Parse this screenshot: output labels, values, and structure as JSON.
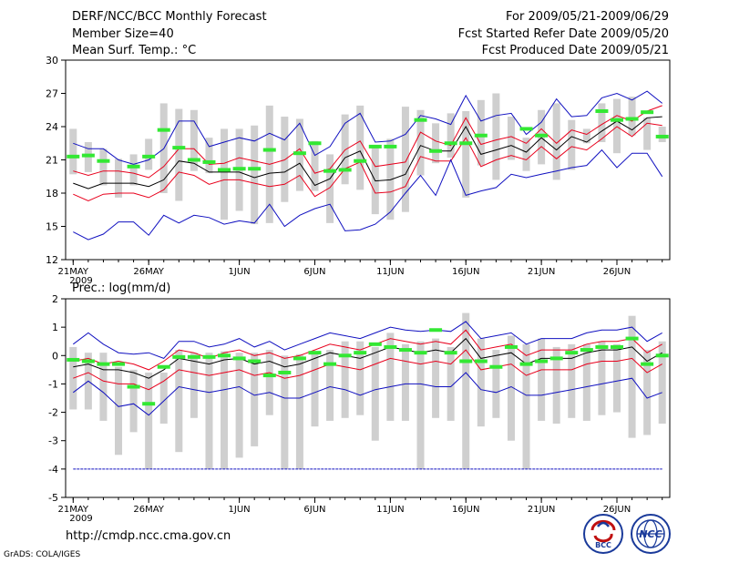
{
  "header": {
    "title": "DERF/NCC/BCC Monthly Forecast",
    "member_size": "Member Size=40",
    "variable": "Mean Surf. Temp.: °C",
    "period": "For 2009/05/21-2009/06/29",
    "started": "Fcst Started Refer Date 2009/05/20",
    "produced": "Fcst Produced Date 2009/05/21"
  },
  "footer": {
    "url": "http://cmdp.ncc.cma.gov.cn",
    "grads": "GrADS: COLA/IGES",
    "logo_bcc": "BCC",
    "logo_ncc": "NCC"
  },
  "colors": {
    "box": "#cfcfcf",
    "ensemble_mean": "#000000",
    "spread_band": "#e8001c",
    "extreme_envelope": "#1010c0",
    "observed": "#33e833",
    "threshold": "#1010c0"
  },
  "chart_data": [
    {
      "type": "box-line",
      "title": "Mean Surf. Temp.: °C",
      "xlabel": "",
      "ylabel": "",
      "ylim": [
        12,
        30
      ],
      "yticks": [
        12,
        15,
        18,
        21,
        24,
        27,
        30
      ],
      "xtick_labels": [
        "21MAY",
        "26MAY",
        "1JUN",
        "6JUN",
        "11JUN",
        "16JUN",
        "21JUN",
        "26JUN"
      ],
      "xtick_days": [
        0,
        5,
        11,
        16,
        21,
        26,
        31,
        36
      ],
      "year_label": "2009",
      "days": 40,
      "series": [
        {
          "name": "max",
          "values": [
            22.5,
            22,
            22,
            21,
            20.6,
            21,
            22,
            24.5,
            24.5,
            22.2,
            22.6,
            23,
            22.7,
            23.4,
            22.8,
            24.3,
            21.4,
            22.2,
            24.3,
            25.2,
            22.6,
            22.7,
            23.3,
            25,
            24.7,
            24.2,
            26.8,
            24.5,
            25,
            25.2,
            23.3,
            24.4,
            26.5,
            24.9,
            25,
            26.6,
            27,
            26.4,
            27.2,
            26.1
          ]
        },
        {
          "name": "upper",
          "values": [
            20,
            19.6,
            20,
            20,
            19.8,
            19.4,
            20.4,
            22,
            22,
            20.6,
            20.7,
            21.2,
            20.9,
            20.6,
            21,
            22,
            19.8,
            20.2,
            21.9,
            22.7,
            20.4,
            20.6,
            20.8,
            23.5,
            22.7,
            22.3,
            24.8,
            22.4,
            22.8,
            23.1,
            22.5,
            23.8,
            22.5,
            23.7,
            23.3,
            24.2,
            25,
            24.5,
            25.4,
            25.9
          ]
        },
        {
          "name": "mean",
          "values": [
            18.9,
            18.4,
            18.9,
            18.9,
            18.9,
            18.6,
            19.2,
            20.9,
            20.7,
            19.9,
            19.9,
            19.9,
            19.4,
            19.8,
            19.9,
            20.7,
            18.7,
            19.3,
            21.2,
            21.8,
            19.1,
            19.2,
            19.7,
            22.3,
            21.8,
            21.8,
            24,
            21.5,
            21.9,
            22.3,
            21.7,
            23,
            21.9,
            23.1,
            22.6,
            23.6,
            24.5,
            23.7,
            24.8,
            24.9
          ]
        },
        {
          "name": "lower",
          "values": [
            17.9,
            17.3,
            17.9,
            18,
            18,
            17.6,
            18.3,
            19.9,
            19.6,
            18.8,
            19.2,
            19.2,
            18.9,
            18.6,
            18.8,
            19.6,
            17.7,
            18.5,
            20.2,
            20.8,
            18,
            18.1,
            18.6,
            21.3,
            20.9,
            20.9,
            23,
            20.4,
            21,
            21.4,
            21,
            22.2,
            21.1,
            22.2,
            21.9,
            22.9,
            24,
            23.1,
            24.3,
            24.1
          ]
        },
        {
          "name": "min",
          "values": [
            14.5,
            13.8,
            14.3,
            15.4,
            15.4,
            14.2,
            16,
            15.3,
            16,
            15.8,
            15.2,
            15.5,
            15.3,
            17,
            15,
            16,
            16.6,
            17,
            14.6,
            14.7,
            15.2,
            16.3,
            18,
            19.6,
            17.8,
            21,
            17.8,
            18.2,
            18.5,
            19.7,
            19.4,
            19.7,
            20,
            20.3,
            20.5,
            21.9,
            20.3,
            21.6,
            21.6,
            19.5
          ]
        },
        {
          "name": "box_high",
          "values": [
            23.8,
            22.6,
            22,
            21.1,
            21.5,
            22.9,
            26.1,
            25.6,
            25.5,
            23,
            23.8,
            23.8,
            24.1,
            25.9,
            24.9,
            24.7,
            22.7,
            21.5,
            25.1,
            25.9,
            22.3,
            22.9,
            25.8,
            25.5,
            24.3,
            25.2,
            25.4,
            26.4,
            27,
            24.9,
            23,
            25.5,
            26.1,
            24.6,
            23.8,
            26.1,
            26.5,
            26.7,
            24.8,
            24
          ]
        },
        {
          "name": "box_low",
          "values": [
            19.7,
            19.9,
            18.7,
            17.6,
            18.7,
            20.1,
            18,
            17.3,
            20,
            19.8,
            15.6,
            16.4,
            15.2,
            15.3,
            17.2,
            18.2,
            18.2,
            15.3,
            18.8,
            18.3,
            16.1,
            15.6,
            16.3,
            19.6,
            20.7,
            21.2,
            17.6,
            20.5,
            19.2,
            21,
            20,
            20.6,
            19.2,
            20.1,
            22.5,
            22.6,
            21.6,
            23.2,
            21.9,
            22.6
          ]
        },
        {
          "name": "observed",
          "values": [
            21.3,
            21.4,
            20.9,
            null,
            20.4,
            21.3,
            23.7,
            22.1,
            21,
            20.8,
            20.1,
            20.2,
            20.2,
            21.9,
            null,
            21.6,
            22.5,
            20,
            20.1,
            20.9,
            22.2,
            22.2,
            null,
            24.6,
            21.8,
            22.5,
            22.5,
            23.2,
            null,
            null,
            23.8,
            23.2,
            null,
            null,
            null,
            25.4,
            24.6,
            24.7,
            25.3,
            23.1
          ]
        }
      ]
    },
    {
      "type": "box-line",
      "title": "Prec.: log(mm/d)",
      "xlabel": "",
      "ylabel": "",
      "ylim": [
        -5,
        2
      ],
      "yticks": [
        -5,
        -4,
        -3,
        -2,
        -1,
        0,
        1,
        2
      ],
      "xtick_labels": [
        "21MAY",
        "26MAY",
        "1JUN",
        "6JUN",
        "11JUN",
        "16JUN",
        "21JUN",
        "26JUN"
      ],
      "xtick_days": [
        0,
        5,
        11,
        16,
        21,
        26,
        31,
        36
      ],
      "year_label": "2009",
      "days": 40,
      "threshold": -4,
      "series": [
        {
          "name": "max",
          "values": [
            0.4,
            0.8,
            0.4,
            0.1,
            0.05,
            0.1,
            -0.1,
            0.5,
            0.5,
            0.3,
            0.4,
            0.6,
            0.3,
            0.5,
            0.2,
            0.4,
            0.6,
            0.8,
            0.7,
            0.6,
            0.8,
            1,
            0.9,
            0.85,
            0.9,
            0.85,
            1.2,
            0.6,
            0.7,
            0.8,
            0.4,
            0.6,
            0.6,
            0.6,
            0.8,
            0.9,
            0.9,
            1,
            0.5,
            0.8
          ]
        },
        {
          "name": "upper",
          "values": [
            -0.2,
            -0.1,
            -0.3,
            -0.2,
            -0.3,
            -0.5,
            -0.2,
            0.2,
            0.1,
            -0.1,
            0.1,
            0.2,
            0,
            0.1,
            -0.1,
            0,
            0.2,
            0.4,
            0.3,
            0.2,
            0.4,
            0.6,
            0.5,
            0.4,
            0.5,
            0.4,
            0.9,
            0.2,
            0.3,
            0.4,
            0,
            0.2,
            0.2,
            0.2,
            0.4,
            0.5,
            0.5,
            0.6,
            0.1,
            0.4
          ]
        },
        {
          "name": "mean",
          "values": [
            -0.4,
            -0.3,
            -0.5,
            -0.5,
            -0.6,
            -0.8,
            -0.5,
            -0.1,
            -0.2,
            -0.3,
            -0.15,
            -0.1,
            -0.3,
            -0.2,
            -0.4,
            -0.3,
            -0.1,
            0.1,
            0,
            -0.1,
            0.1,
            0.3,
            0.2,
            0.1,
            0.2,
            0.1,
            0.6,
            -0.1,
            0,
            0.1,
            -0.3,
            -0.1,
            -0.1,
            -0.1,
            0.1,
            0.2,
            0.2,
            0.3,
            -0.2,
            0.1
          ]
        },
        {
          "name": "lower",
          "values": [
            -0.8,
            -0.6,
            -0.9,
            -1,
            -1,
            -1.2,
            -0.9,
            -0.5,
            -0.6,
            -0.7,
            -0.6,
            -0.5,
            -0.7,
            -0.6,
            -0.8,
            -0.7,
            -0.5,
            -0.3,
            -0.4,
            -0.5,
            -0.3,
            -0.1,
            -0.2,
            -0.3,
            -0.2,
            -0.3,
            0.2,
            -0.5,
            -0.4,
            -0.3,
            -0.7,
            -0.5,
            -0.5,
            -0.5,
            -0.3,
            -0.2,
            -0.2,
            -0.1,
            -0.6,
            -0.3
          ]
        },
        {
          "name": "min",
          "values": [
            -1.3,
            -0.9,
            -1.3,
            -1.8,
            -1.7,
            -2.1,
            -1.6,
            -1.1,
            -1.2,
            -1.3,
            -1.2,
            -1.1,
            -1.4,
            -1.3,
            -1.5,
            -1.5,
            -1.3,
            -1.1,
            -1.2,
            -1.4,
            -1.2,
            -1.1,
            -1,
            -1,
            -1.1,
            -1.1,
            -0.6,
            -1.2,
            -1.3,
            -1.1,
            -1.4,
            -1.4,
            -1.3,
            -1.2,
            -1.1,
            -1,
            -0.9,
            -0.8,
            -1.5,
            -1.3
          ]
        },
        {
          "name": "box_high",
          "values": [
            0.3,
            0.1,
            0.1,
            -0.4,
            -0.5,
            -0.6,
            -0.6,
            0.2,
            0.1,
            0.1,
            0.15,
            0.1,
            0.1,
            0.2,
            0,
            0.05,
            0.1,
            0.2,
            0.5,
            0.5,
            0.3,
            0.8,
            0.4,
            0.5,
            0.6,
            0.3,
            1.5,
            0.6,
            0.2,
            0.7,
            0.4,
            0.6,
            0.3,
            0.4,
            0.4,
            0.5,
            0.4,
            1.4,
            0.2,
            0.5
          ]
        },
        {
          "name": "box_low",
          "values": [
            -1.9,
            -1.9,
            -2.3,
            -3.5,
            -2.7,
            -4,
            -2.4,
            -3.4,
            -2.2,
            -4,
            -4,
            -3.6,
            -3.2,
            -2.1,
            -4,
            -4,
            -2.5,
            -2.3,
            -2.2,
            -2.1,
            -3,
            -2.3,
            -2.3,
            -4,
            -2.2,
            -2.3,
            -4,
            -2.5,
            -2.2,
            -3,
            -4,
            -2.3,
            -2.4,
            -2.2,
            -2.3,
            -2.1,
            -2,
            -2.9,
            -2.8,
            -2.4
          ]
        },
        {
          "name": "observed",
          "values": [
            -0.15,
            -0.2,
            -0.3,
            -0.3,
            -1.1,
            -1.7,
            -0.4,
            -0.05,
            -0.05,
            -0.05,
            0,
            -0.1,
            -0.2,
            -0.7,
            -0.6,
            -0.1,
            0.1,
            -0.3,
            0,
            0.1,
            0.4,
            0.3,
            0.2,
            0.1,
            0.9,
            0.1,
            -0.2,
            -0.2,
            -0.4,
            0.3,
            -0.3,
            -0.2,
            -0.1,
            0.1,
            0.2,
            0.3,
            0.3,
            0.6,
            -0.3,
            0
          ]
        }
      ]
    }
  ]
}
